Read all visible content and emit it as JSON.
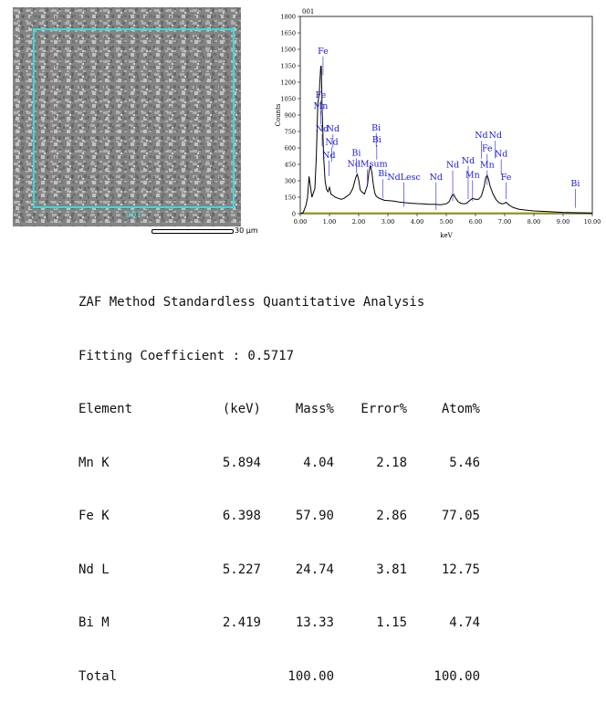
{
  "sem_image": {
    "region_label": "001",
    "scale_label": "30 μm"
  },
  "chart_data": {
    "type": "line",
    "corner_label": "001",
    "xlabel": "keV",
    "ylabel": "Counts",
    "xlim": [
      0,
      10
    ],
    "ylim": [
      0,
      1800
    ],
    "xticks": [
      "0.00",
      "1.00",
      "2.00",
      "3.00",
      "4.00",
      "5.00",
      "6.00",
      "7.00",
      "8.00",
      "9.00",
      "10.00"
    ],
    "yticks": [
      "0",
      "150",
      "300",
      "450",
      "600",
      "750",
      "900",
      "1050",
      "1200",
      "1350",
      "1500",
      "1650",
      "1800"
    ],
    "series": [
      {
        "x": [
          0.0,
          0.1,
          0.2,
          0.25,
          0.3,
          0.4,
          0.5,
          0.55,
          0.6,
          0.65,
          0.7,
          0.72,
          0.75,
          0.8,
          0.85,
          0.9,
          0.95,
          1.0,
          1.05,
          1.1,
          1.2,
          1.3,
          1.4,
          1.5,
          1.6,
          1.7,
          1.8,
          1.9,
          1.95,
          2.0,
          2.05,
          2.1,
          2.2,
          2.3,
          2.35,
          2.4,
          2.45,
          2.5,
          2.55,
          2.6,
          2.7,
          2.8,
          2.9,
          3.0,
          3.2,
          3.4,
          3.6,
          3.8,
          4.0,
          4.2,
          4.4,
          4.6,
          4.8,
          5.0,
          5.1,
          5.2,
          5.25,
          5.3,
          5.4,
          5.5,
          5.6,
          5.7,
          5.8,
          5.9,
          6.0,
          6.1,
          6.2,
          6.3,
          6.35,
          6.4,
          6.45,
          6.5,
          6.6,
          6.7,
          6.8,
          6.9,
          7.0,
          7.05,
          7.1,
          7.2,
          7.3,
          7.5,
          7.8,
          8.0,
          8.5,
          9.0,
          9.5,
          10.0
        ],
        "y": [
          0,
          10,
          80,
          150,
          340,
          150,
          230,
          520,
          1000,
          1100,
          1340,
          1350,
          950,
          520,
          300,
          220,
          200,
          240,
          180,
          170,
          150,
          140,
          130,
          140,
          160,
          180,
          230,
          330,
          360,
          310,
          220,
          200,
          180,
          260,
          380,
          440,
          380,
          270,
          190,
          160,
          140,
          130,
          120,
          120,
          115,
          105,
          100,
          95,
          92,
          90,
          86,
          85,
          82,
          90,
          110,
          170,
          175,
          150,
          110,
          95,
          90,
          95,
          120,
          140,
          130,
          130,
          160,
          250,
          330,
          350,
          310,
          250,
          180,
          130,
          100,
          90,
          95,
          105,
          90,
          70,
          55,
          40,
          30,
          25,
          18,
          12,
          8,
          5
        ]
      }
    ],
    "peak_labels": [
      {
        "text": "Fe",
        "x": 0.78,
        "y": 1460,
        "line_to": 1380
      },
      {
        "text": "Fe",
        "x": 0.7,
        "y": 1060,
        "line_to": 1020
      },
      {
        "text": "Mn",
        "x": 0.7,
        "y": 960,
        "line_to": 930
      },
      {
        "text": "Nd",
        "x": 0.75,
        "y": 750,
        "line_to": 730
      },
      {
        "text": "Nd",
        "x": 1.12,
        "y": 750,
        "line_to": 720
      },
      {
        "text": "Nd",
        "x": 1.08,
        "y": 630,
        "line_to": 590
      },
      {
        "text": "Nd",
        "x": 0.98,
        "y": 510,
        "line_to": 460
      },
      {
        "text": "Bi",
        "x": 2.6,
        "y": 760,
        "line_to": 730
      },
      {
        "text": "Bi",
        "x": 2.62,
        "y": 650,
        "line_to": 610
      },
      {
        "text": "Bi",
        "x": 1.92,
        "y": 530,
        "line_to": 490
      },
      {
        "text": "NdMsum",
        "x": 2.3,
        "y": 430,
        "line_to": 390
      },
      {
        "text": "Bi",
        "x": 2.82,
        "y": 340,
        "line_to": 260
      },
      {
        "text": "NdLesc",
        "x": 3.55,
        "y": 310,
        "line_to": 180
      },
      {
        "text": "Nd",
        "x": 4.65,
        "y": 310,
        "line_to": 150
      },
      {
        "text": "Nd",
        "x": 5.22,
        "y": 420,
        "line_to": 230
      },
      {
        "text": "Nd",
        "x": 5.75,
        "y": 460,
        "line_to": 250
      },
      {
        "text": "Mn",
        "x": 5.9,
        "y": 330,
        "line_to": 230
      },
      {
        "text": "Nd",
        "x": 6.2,
        "y": 690,
        "line_to": 620
      },
      {
        "text": "Nd",
        "x": 6.68,
        "y": 690,
        "line_to": 620
      },
      {
        "text": "Fe",
        "x": 6.4,
        "y": 570,
        "line_to": 540
      },
      {
        "text": "Nd",
        "x": 6.88,
        "y": 520,
        "line_to": 470
      },
      {
        "text": "Mn",
        "x": 6.4,
        "y": 420,
        "line_to": 380
      },
      {
        "text": "Fe",
        "x": 7.05,
        "y": 310,
        "line_to": 250
      },
      {
        "text": "Bi",
        "x": 9.42,
        "y": 250,
        "line_to": 170
      }
    ],
    "colors": {
      "trace": "#000000",
      "labels": "#1a1ad6",
      "baseline": "#c9c900"
    }
  },
  "zaf_table": {
    "title": "ZAF Method Standardless Quantitative Analysis",
    "fitting": "Fitting Coefficient : 0.5717",
    "headers": [
      "Element",
      "(keV)",
      "Mass%",
      "Error%",
      "Atom%"
    ],
    "rows": [
      [
        "Mn K",
        "5.894",
        "4.04",
        "2.18",
        "5.46"
      ],
      [
        "Fe K",
        "6.398",
        "57.90",
        "2.86",
        "77.05"
      ],
      [
        "Nd L",
        "5.227",
        "24.74",
        "3.81",
        "12.75"
      ],
      [
        "Bi M",
        "2.419",
        "13.33",
        "1.15",
        "4.74"
      ]
    ],
    "total": [
      "Total",
      "",
      "100.00",
      "",
      "100.00"
    ]
  }
}
